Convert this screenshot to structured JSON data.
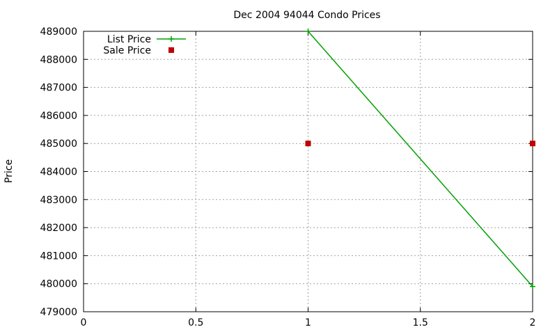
{
  "chart_data": {
    "type": "line",
    "title": "Dec 2004 94044 Condo Prices",
    "xlabel": "",
    "ylabel": "Price",
    "xlim": [
      0,
      2
    ],
    "ylim": [
      479000,
      489000
    ],
    "x_ticks": [
      0,
      0.5,
      1,
      1.5,
      2
    ],
    "x_tick_labels": [
      "0",
      "0.5",
      "1",
      "1.5",
      "2"
    ],
    "y_ticks": [
      479000,
      480000,
      481000,
      482000,
      483000,
      484000,
      485000,
      486000,
      487000,
      488000,
      489000
    ],
    "y_tick_labels": [
      "479000",
      "480000",
      "481000",
      "482000",
      "483000",
      "484000",
      "485000",
      "486000",
      "487000",
      "488000",
      "489000"
    ],
    "grid": true,
    "legend_position": "top-left",
    "series": [
      {
        "name": "List Price",
        "style": "line-plus",
        "color": "#00a000",
        "x": [
          1,
          2
        ],
        "y": [
          489000,
          479900
        ]
      },
      {
        "name": "Sale Price",
        "style": "square",
        "color": "#c00000",
        "x": [
          1,
          2
        ],
        "y": [
          485000,
          485000
        ]
      }
    ]
  }
}
